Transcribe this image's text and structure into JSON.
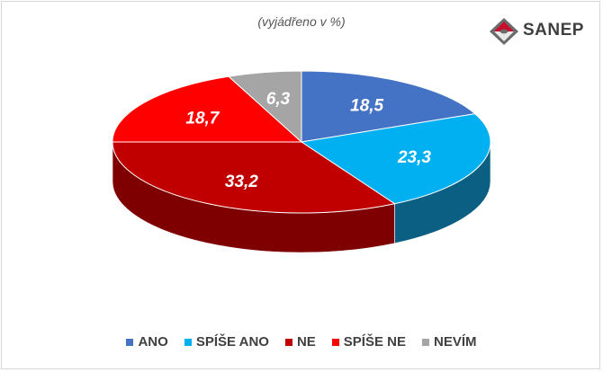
{
  "chart_data": {
    "type": "pie",
    "subtitle": "(vyjádřeno v %)",
    "categories": [
      "ANO",
      "SPÍŠE ANO",
      "NE",
      "SPÍŠE NE",
      "NEVÍM"
    ],
    "values": [
      18.5,
      23.3,
      33.2,
      18.7,
      6.3
    ],
    "value_labels": [
      "18,5",
      "23,3",
      "33,2",
      "18,7",
      "6,3"
    ],
    "colors": [
      "#4472c4",
      "#00b0f0",
      "#c00000",
      "#ff0000",
      "#a5a5a5"
    ],
    "side_colors": [
      "#2f5597",
      "#0b5f82",
      "#7f0000",
      "#b20000",
      "#7f7f7f"
    ],
    "legend_position": "bottom",
    "style": "3d"
  },
  "logo": {
    "text": "SANEP"
  }
}
